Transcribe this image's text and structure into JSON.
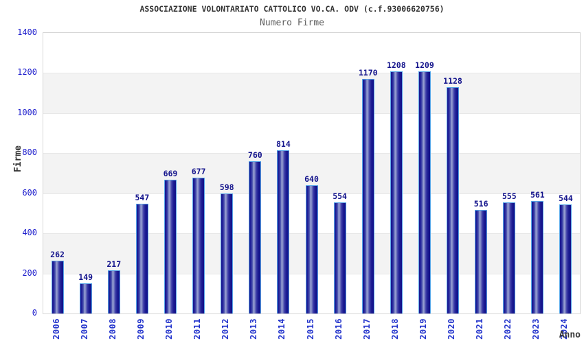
{
  "header": {
    "title": "ASSOCIAZIONE VOLONTARIATO CATTOLICO VO.CA. ODV (c.f.93006620756)",
    "subtitle": "Numero Firme"
  },
  "chart_data": {
    "type": "bar",
    "title": "ASSOCIAZIONE VOLONTARIATO CATTOLICO VO.CA. ODV (c.f.93006620756)",
    "subtitle": "Numero Firme",
    "categories": [
      "2006",
      "2007",
      "2008",
      "2009",
      "2010",
      "2011",
      "2012",
      "2013",
      "2014",
      "2015",
      "2016",
      "2017",
      "2018",
      "2019",
      "2020",
      "2021",
      "2022",
      "2023",
      "2024"
    ],
    "values": [
      262,
      149,
      217,
      547,
      669,
      677,
      598,
      760,
      814,
      640,
      554,
      1170,
      1208,
      1209,
      1128,
      516,
      555,
      561,
      544
    ],
    "xlabel": "Anno",
    "ylabel": "Firme",
    "ylim": [
      0,
      1400
    ],
    "ytick_step": 200,
    "yticks": [
      0,
      200,
      400,
      600,
      800,
      1000,
      1200,
      1400
    ],
    "grid": true,
    "legend": false,
    "value_labels_shown": true
  },
  "colors": {
    "bar_border": "#58a6e8",
    "bar_dark": "#16168e",
    "bar_highlight": "#9ba3d4",
    "value_label": "#14148c",
    "axis_tick_label": "#1c1ccc",
    "category_label": "#2233cc",
    "band_alt": "#f3f3f3",
    "gridline": "#e7e7e7",
    "plot_border": "#d6d6d6",
    "title": "#333333",
    "subtitle": "#5e5e5e"
  }
}
